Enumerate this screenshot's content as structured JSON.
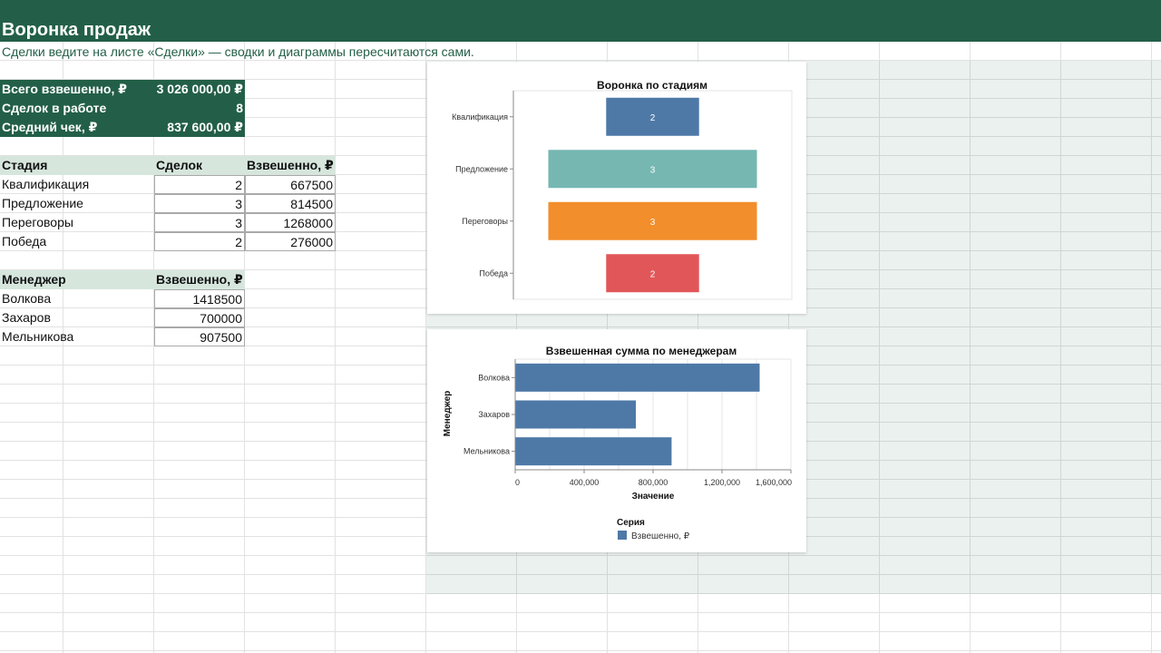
{
  "title": "Воронка продаж",
  "subtitle": "Сделки ведите на листе «Сделки» — сводки и диаграммы пересчитаются сами.",
  "kpis": [
    {
      "label": "Всего взвешенно, ₽",
      "value": "3 026 000,00 ₽"
    },
    {
      "label": "Сделок в работе",
      "value": "8"
    },
    {
      "label": "Средний чек, ₽",
      "value": "837 600,00 ₽"
    }
  ],
  "stage_table": {
    "headers": [
      "Стадия",
      "Сделок",
      "Взвешенно, ₽"
    ],
    "rows": [
      {
        "stage": "Квалификация",
        "deals": "2",
        "weighted": "667500"
      },
      {
        "stage": "Предложение",
        "deals": "3",
        "weighted": "814500"
      },
      {
        "stage": "Переговоры",
        "deals": "3",
        "weighted": "1268000"
      },
      {
        "stage": "Победа",
        "deals": "2",
        "weighted": "276000"
      }
    ]
  },
  "manager_table": {
    "headers": [
      "Менеджер",
      "Взвешенно, ₽"
    ],
    "rows": [
      {
        "name": "Волкова",
        "weighted": "1418500"
      },
      {
        "name": "Захаров",
        "weighted": "700000"
      },
      {
        "name": "Мельникова",
        "weighted": "907500"
      }
    ]
  },
  "chart_data": [
    {
      "type": "bar",
      "subtype": "funnel",
      "title": "Воронка по стадиям",
      "categories": [
        "Квалификация",
        "Предложение",
        "Переговоры",
        "Победа"
      ],
      "values": [
        2,
        3,
        3,
        2
      ],
      "colors": [
        "#4e79a7",
        "#76b7b2",
        "#f28e2b",
        "#e15759"
      ],
      "grid": false
    },
    {
      "type": "bar",
      "orientation": "horizontal",
      "title": "Взвешенная сумма по менеджерам",
      "categories": [
        "Волкова",
        "Захаров",
        "Мельникова"
      ],
      "series": [
        {
          "name": "Взвешенно, ₽",
          "values": [
            1418500,
            700000,
            907500
          ],
          "color": "#4e79a7"
        }
      ],
      "xlabel": "Значение",
      "ylabel": "Менеджер",
      "xlim": [
        0,
        1600000
      ],
      "xticks": [
        0,
        400000,
        800000,
        1200000,
        1600000
      ],
      "xtick_labels": [
        "0",
        "400,000",
        "800,000",
        "1,200,000",
        "1,600,000"
      ],
      "grid": true,
      "legend": {
        "title": "Серия",
        "placement": "bottom"
      }
    }
  ]
}
